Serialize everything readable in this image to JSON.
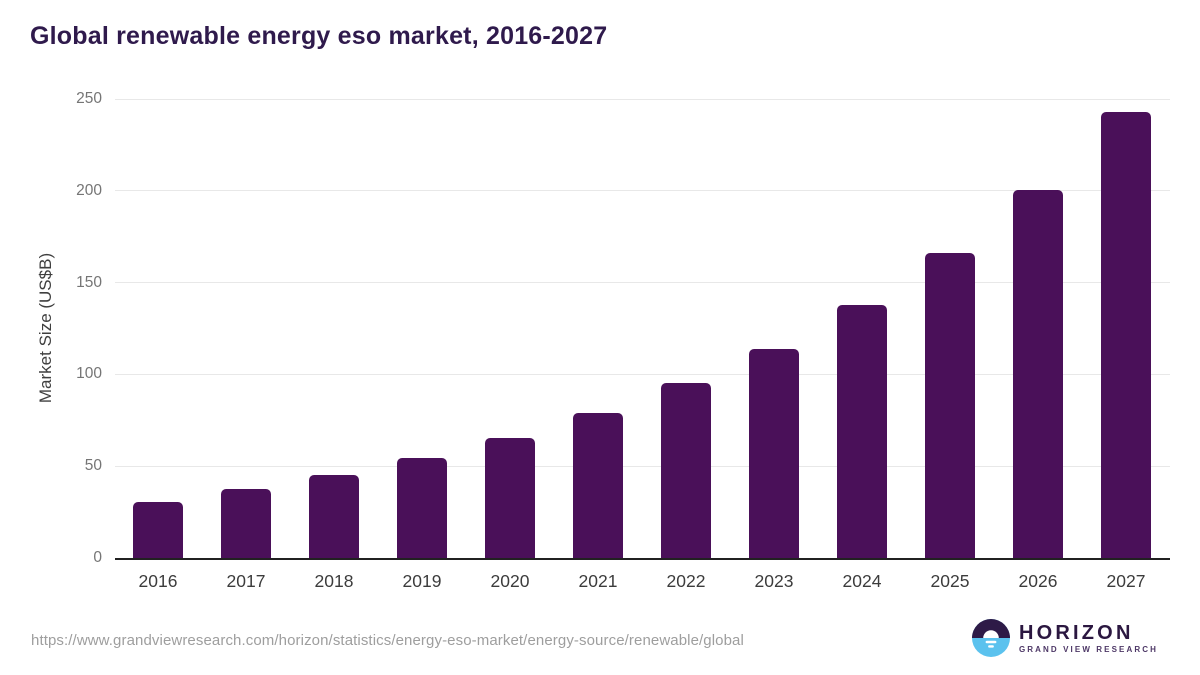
{
  "title": "Global renewable energy eso market, 2016-2027",
  "chart_data": {
    "type": "bar",
    "title": "Global renewable energy eso market, 2016-2027",
    "categories": [
      "2016",
      "2017",
      "2018",
      "2019",
      "2020",
      "2021",
      "2022",
      "2023",
      "2024",
      "2025",
      "2026",
      "2027"
    ],
    "values": [
      30.4,
      37.5,
      45.1,
      54.3,
      65.2,
      78.8,
      95.1,
      113.6,
      138.0,
      166.3,
      200.5,
      243.0
    ],
    "xlabel": "",
    "ylabel": "Market Size (US$B)",
    "ylim": [
      0,
      250
    ],
    "yticks": [
      0,
      50,
      100,
      150,
      200,
      250
    ],
    "grid": "horizontal",
    "legend": "none",
    "bar_color": "#4a1059"
  },
  "colors": {
    "bar": "#4a1059",
    "title_text": "#2f1a4c",
    "x_label_text": "#3c3c3c",
    "y_tick_text": "#757575",
    "gridline": "#e8e8e8",
    "baseline": "#212121",
    "source_text": "#9e9e9e",
    "logo_purple": "#2e1a47",
    "logo_blue": "#5bc2ee"
  },
  "footer": {
    "source_url": "https://www.grandviewresearch.com/horizon/statistics/energy-eso-market/energy-source/renewable/global",
    "logo": {
      "title": "HORIZON",
      "subtitle": "GRAND VIEW RESEARCH"
    }
  }
}
